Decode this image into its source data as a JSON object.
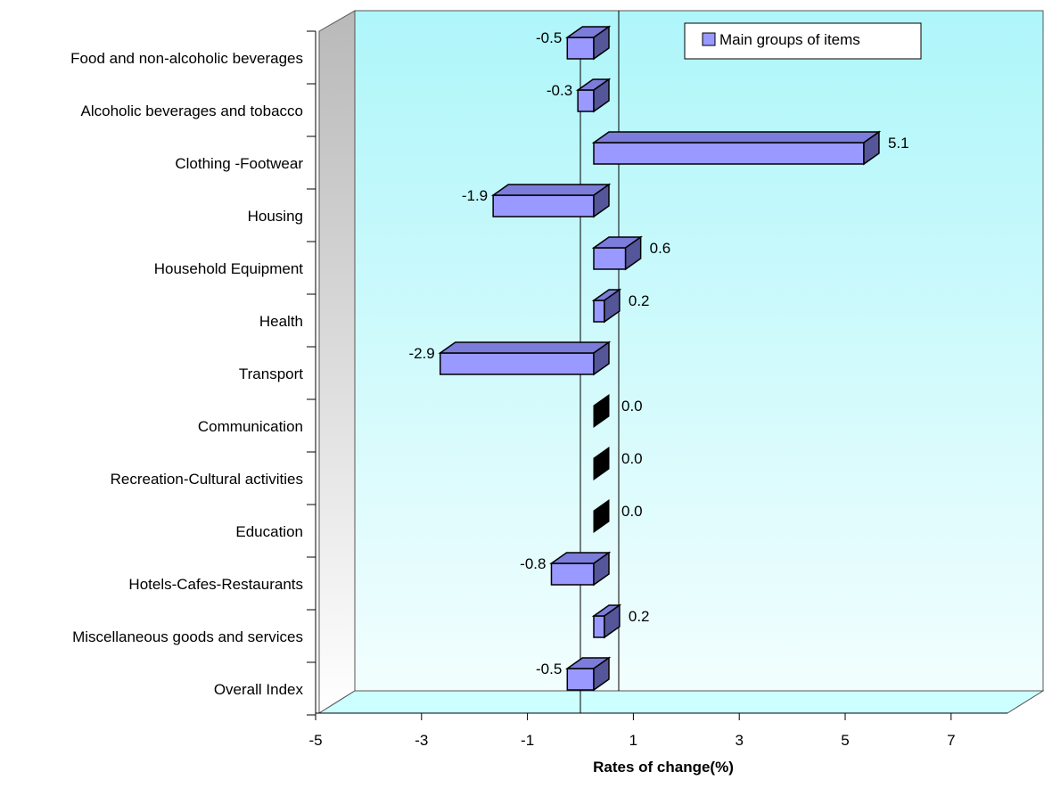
{
  "chart_data": {
    "type": "bar",
    "orientation": "horizontal",
    "three_d": true,
    "categories": [
      "Food and non-alcoholic beverages",
      "Alcoholic beverages and tobacco",
      "Clothing -Footwear",
      "Housing",
      "Household Equipment",
      "Health",
      "Transport",
      "Communication",
      "Recreation-Cultural activities",
      "Education",
      "Hotels-Cafes-Restaurants",
      "Miscellaneous goods and services",
      "Overall Index"
    ],
    "series": [
      {
        "name": "Main groups of items",
        "values": [
          -0.5,
          -0.3,
          5.1,
          -1.9,
          0.6,
          0.2,
          -2.9,
          0.0,
          0.0,
          0.0,
          -0.8,
          0.2,
          -0.5
        ],
        "labels": [
          "-0.5",
          "-0.3",
          "5.1",
          "-1.9",
          "0.6",
          "0.2",
          "-2.9",
          "0.0",
          "0.0",
          "0.0",
          "-0.8",
          "0.2",
          "-0.5"
        ]
      }
    ],
    "xlabel": "Rates of change(%)",
    "ylabel": "",
    "xlim": [
      -5,
      9
    ],
    "x_ticks": [
      -5,
      -3,
      -1,
      1,
      3,
      5,
      7
    ],
    "x_tick_labels": [
      "-5",
      "-3",
      "-1",
      "1",
      "3",
      "5",
      "7"
    ],
    "reference_line": 0.7,
    "legend_position": "top-right",
    "grid": false,
    "colors": {
      "bar_front": "#9999ff",
      "bar_top": "#7c7cdb",
      "bar_side": "#555599",
      "bar_zero_face": "#000000",
      "plot_bg_top": "#aef6fa",
      "plot_bg_bottom": "#f2fefe",
      "side_wall_dark": "#b9b9b9",
      "side_wall_light": "#ffffff",
      "floor": "#ccffff"
    }
  }
}
